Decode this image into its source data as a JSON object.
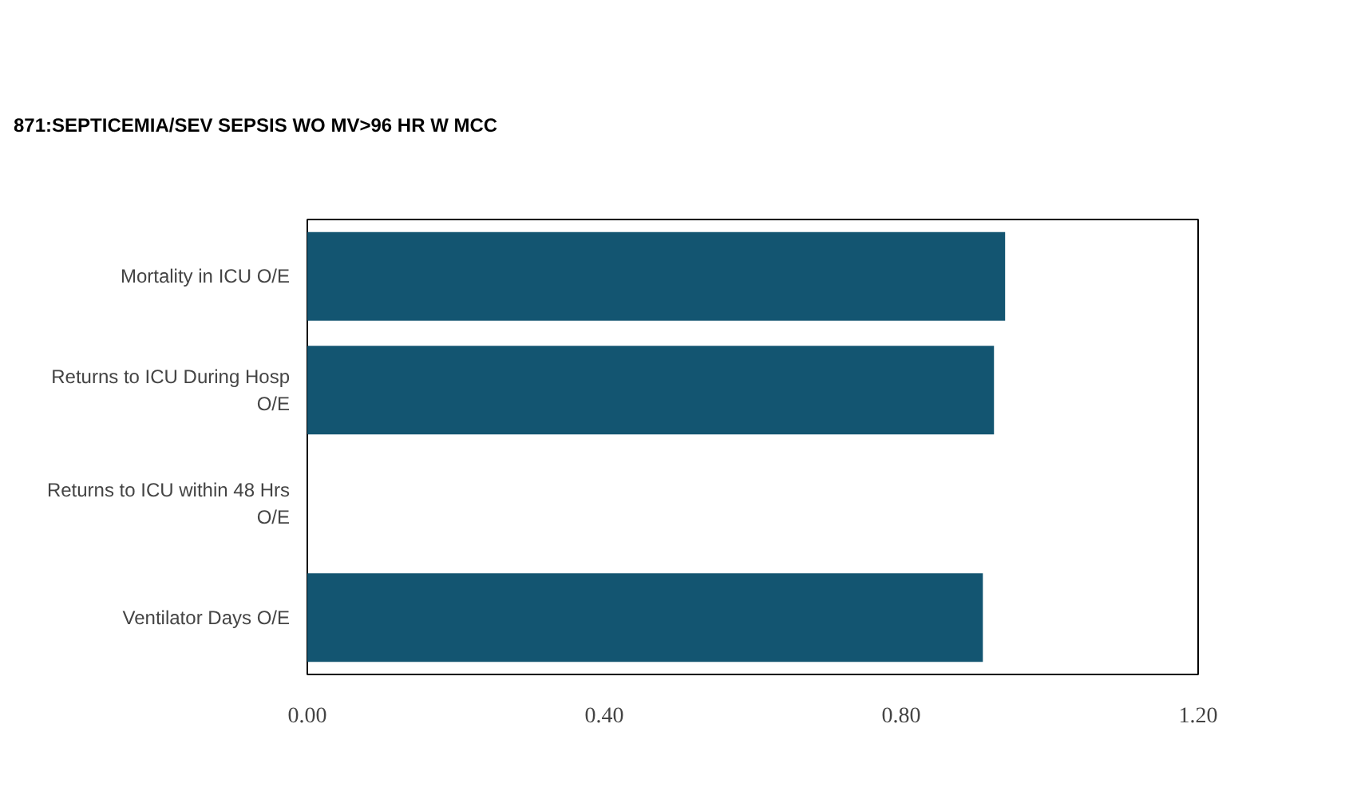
{
  "chart_data": {
    "type": "bar",
    "orientation": "horizontal",
    "title": "871:SEPTICEMIA/SEV SEPSIS WO MV>96 HR W MCC",
    "categories": [
      "Mortality in ICU O/E",
      "Returns to ICU During Hosp O/E",
      "Returns to ICU within 48 Hrs O/E",
      "Ventilator Days O/E"
    ],
    "values": [
      0.94,
      0.925,
      null,
      0.91
    ],
    "color": "#135571",
    "xlim": [
      0,
      1.2
    ],
    "xticks": [
      {
        "value": 0,
        "label": "0.00"
      },
      {
        "value": 0.4,
        "label": "0.40"
      },
      {
        "value": 0.8,
        "label": "0.80"
      },
      {
        "value": 1.2,
        "label": "1.20"
      }
    ],
    "grid": false
  }
}
